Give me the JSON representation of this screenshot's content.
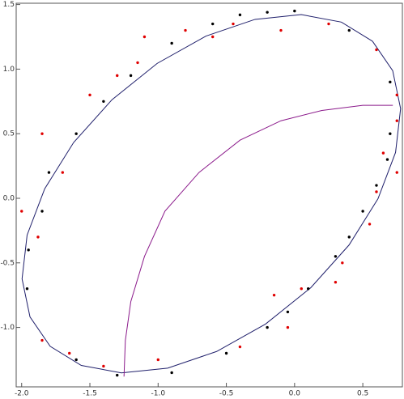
{
  "chart_data": {
    "type": "scatter",
    "xlim": [
      -2.04,
      0.79
    ],
    "ylim": [
      -1.46,
      1.51
    ],
    "xticks": [
      {
        "value": -2,
        "label": "-2.0"
      },
      {
        "value": -1.5,
        "label": "-1.5"
      },
      {
        "value": -1,
        "label": "-1.0"
      },
      {
        "value": -0.5,
        "label": "-0.5"
      },
      {
        "value": 0,
        "label": "0.0"
      },
      {
        "value": 0.5,
        "label": "0.5"
      }
    ],
    "yticks": [
      {
        "value": -1,
        "label": "-1.0"
      },
      {
        "value": -0.5,
        "label": "-0.5"
      },
      {
        "value": 0,
        "label": "0.0"
      },
      {
        "value": 0.5,
        "label": "0.5"
      },
      {
        "value": 1,
        "label": "1.0"
      },
      {
        "value": 1.5,
        "label": "1.5"
      }
    ],
    "series": [
      {
        "style": "line",
        "color": "#1f1f6b",
        "x": [
          0.571,
          0.343,
          0.049,
          -0.29,
          -0.649,
          -1.007,
          -1.338,
          -1.619,
          -1.831,
          -1.96,
          -1.997,
          -1.939,
          -1.791,
          -1.563,
          -1.269,
          -0.93,
          -0.571,
          -0.213,
          0.118,
          0.399,
          0.611,
          0.74,
          0.777,
          0.719,
          0.571
        ],
        "values": [
          1.216,
          1.364,
          1.422,
          1.385,
          1.256,
          1.044,
          0.763,
          0.432,
          0.074,
          -0.285,
          -0.624,
          -0.918,
          -1.146,
          -1.294,
          -1.352,
          -1.315,
          -1.186,
          -0.974,
          -0.693,
          -0.362,
          -0.004,
          0.355,
          0.694,
          0.988,
          1.216
        ]
      },
      {
        "style": "line",
        "color": "#8b1a8b",
        "x": [
          -1.25,
          -1.24,
          -1.2,
          -1.1,
          -0.95,
          -0.7,
          -0.4,
          -0.1,
          0.2,
          0.5,
          0.72
        ],
        "values": [
          -1.38,
          -1.1,
          -0.8,
          -0.45,
          -0.1,
          0.2,
          0.45,
          0.6,
          0.68,
          0.72,
          0.72
        ]
      },
      {
        "style": "points",
        "color": "#000000",
        "x": [
          -0.4,
          -0.2,
          0,
          0.4,
          0.7,
          0.7,
          0.68,
          0.6,
          0.5,
          0.4,
          0.3,
          0.1,
          -0.05,
          -0.2,
          -0.5,
          -0.9,
          -1.3,
          -1.6,
          -1.96,
          -1.95,
          -1.85,
          -1.8,
          -1.6,
          -1.4,
          -1.2,
          -0.9,
          -0.6
        ],
        "values": [
          1.42,
          1.44,
          1.45,
          1.3,
          0.9,
          0.5,
          0.3,
          0.1,
          -0.1,
          -0.3,
          -0.45,
          -0.7,
          -0.88,
          -1.0,
          -1.2,
          -1.35,
          -1.37,
          -1.25,
          -0.7,
          -0.4,
          -0.1,
          0.2,
          0.5,
          0.75,
          0.95,
          1.2,
          1.35
        ]
      },
      {
        "style": "points",
        "color": "#e00000",
        "x": [
          -0.8,
          -0.6,
          -1.15,
          -1.5,
          -1.85,
          -1.7,
          -2.0,
          -1.88,
          -1.85,
          -1.65,
          -1.4,
          -1.0,
          -0.4,
          -0.05,
          0.05,
          0.35,
          0.55,
          0.6,
          0.65,
          0.75,
          0.75,
          0.75,
          0.6,
          0.25,
          -0.1,
          -0.45,
          -1.1,
          -1.3,
          -0.15,
          0.3
        ],
        "values": [
          1.3,
          1.25,
          1.05,
          0.8,
          0.5,
          0.2,
          -0.1,
          -0.3,
          -1.1,
          -1.2,
          -1.3,
          -1.25,
          -1.15,
          -1.0,
          -0.7,
          -0.5,
          -0.2,
          0.05,
          0.35,
          0.2,
          0.6,
          0.8,
          1.15,
          1.35,
          1.3,
          1.35,
          1.25,
          0.95,
          -0.75,
          -0.65
        ]
      }
    ]
  }
}
